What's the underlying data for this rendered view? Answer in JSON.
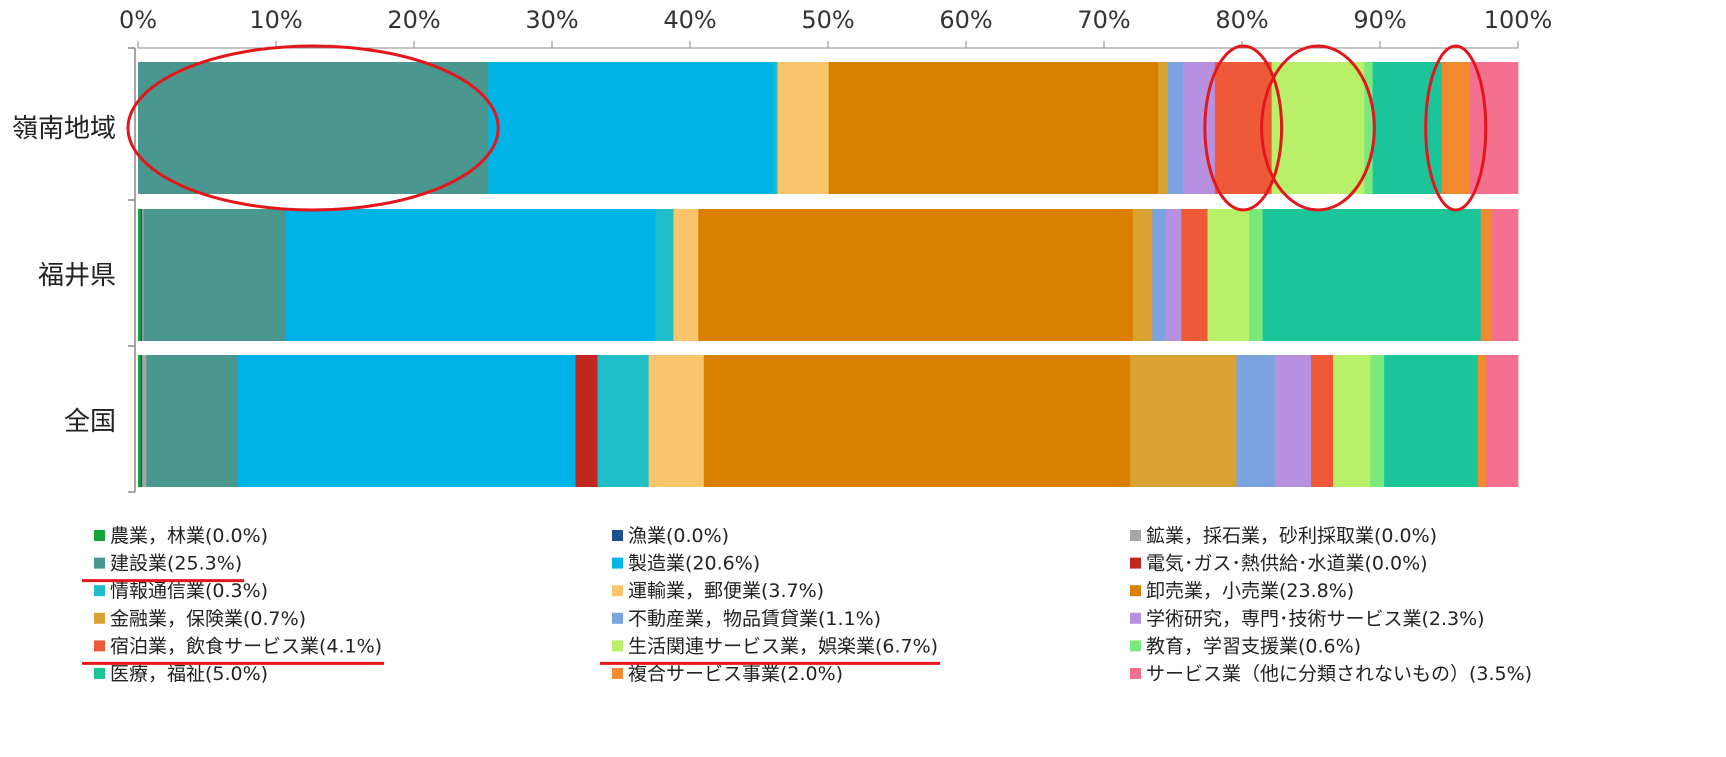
{
  "chart_data": {
    "type": "bar",
    "orientation": "horizontal",
    "stacked": true,
    "percent_stacked": true,
    "xlim": [
      0,
      100
    ],
    "x_ticks": [
      "0%",
      "10%",
      "20%",
      "30%",
      "40%",
      "50%",
      "60%",
      "70%",
      "80%",
      "90%",
      "100%"
    ],
    "categories": [
      "嶺南地域",
      "福井県",
      "全国"
    ],
    "legend_position": "bottom",
    "series": [
      {
        "name": "農業，林業(0.0%)",
        "color": "#13a538",
        "values": [
          0.0,
          0.2,
          0.2
        ]
      },
      {
        "name": "漁業(0.0%)",
        "color": "#1f4e8c",
        "values": [
          0.0,
          0.1,
          0.1
        ]
      },
      {
        "name": "鉱業，採石業，砂利採取業(0.0%)",
        "color": "#a6a6a6",
        "values": [
          0.0,
          0.1,
          0.3
        ]
      },
      {
        "name": "建設業(25.3%)",
        "color": "#4a9790",
        "values": [
          25.3,
          10.3,
          6.6
        ]
      },
      {
        "name": "製造業(20.6%)",
        "color": "#00b3e6",
        "values": [
          20.6,
          26.8,
          24.5
        ]
      },
      {
        "name": "電気･ガス･熱供給･水道業(0.0%)",
        "color": "#c0271f",
        "values": [
          0.0,
          0.0,
          1.6
        ]
      },
      {
        "name": "情報通信業(0.3%)",
        "color": "#1fbdc8",
        "values": [
          0.3,
          1.3,
          3.7
        ]
      },
      {
        "name": "運輸業，郵便業(3.7%)",
        "color": "#f8c56c",
        "values": [
          3.7,
          1.8,
          4.0
        ]
      },
      {
        "name": "卸売業，小売業(23.8%)",
        "color": "#d98000",
        "values": [
          23.8,
          31.5,
          30.9
        ]
      },
      {
        "name": "金融業，保険業(0.7%)",
        "color": "#d9a232",
        "values": [
          0.7,
          1.4,
          7.7
        ]
      },
      {
        "name": "不動産業，物品賃貸業(1.1%)",
        "color": "#7aa3e0",
        "values": [
          1.1,
          1.0,
          2.8
        ]
      },
      {
        "name": "学術研究，専門･技術サービス業(2.3%)",
        "color": "#b890e0",
        "values": [
          2.3,
          1.1,
          2.6
        ]
      },
      {
        "name": "宿泊業，飲食サービス業(4.1%)",
        "color": "#ee5a38",
        "values": [
          4.1,
          1.9,
          1.6
        ]
      },
      {
        "name": "生活関連サービス業，娯楽業(6.7%)",
        "color": "#b8f06a",
        "values": [
          6.7,
          3.0,
          2.7
        ]
      },
      {
        "name": "教育，学習支援業(0.6%)",
        "color": "#7ae87a",
        "values": [
          0.6,
          1.0,
          1.0
        ]
      },
      {
        "name": "医療，福祉(5.0%)",
        "color": "#1cc49a",
        "values": [
          5.0,
          15.8,
          6.8
        ]
      },
      {
        "name": "複合サービス事業(2.0%)",
        "color": "#f28a30",
        "values": [
          2.0,
          0.8,
          0.6
        ]
      },
      {
        "name": "サービス業（他に分類されないもの）(3.5%)",
        "color": "#f4708e",
        "values": [
          3.5,
          1.9,
          2.3
        ]
      }
    ],
    "annotations": {
      "underlined_legend_entries": [
        3,
        12,
        13
      ],
      "highlight_color": "#e3161b",
      "circled": [
        {
          "category": "嶺南地域",
          "series_index": 3
        },
        {
          "category": "嶺南地域",
          "series_index": 12
        },
        {
          "category": "嶺南地域",
          "series_index": 13
        },
        {
          "category": "嶺南地域",
          "series_index": 16
        }
      ]
    }
  }
}
